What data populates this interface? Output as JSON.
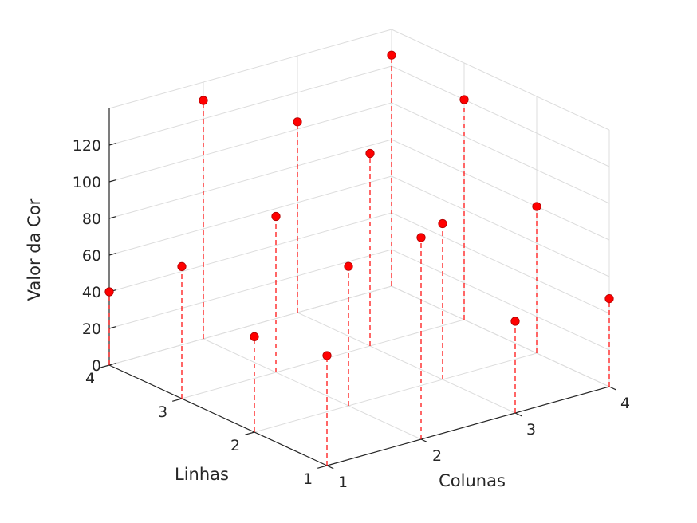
{
  "chart_data": {
    "type": "scatter",
    "subtype": "stem3",
    "title": "",
    "xlabel": "Colunas",
    "ylabel": "Linhas",
    "zlabel": "Valor da Cor",
    "xticks": [
      "1",
      "2",
      "3",
      "4"
    ],
    "yticks": [
      "1",
      "2",
      "3",
      "4"
    ],
    "zticks": [
      "0",
      "20",
      "40",
      "60",
      "80",
      "100",
      "120"
    ],
    "xlim": [
      1,
      4
    ],
    "ylim": [
      1,
      4
    ],
    "zlim": [
      0,
      140
    ],
    "grid": true,
    "marker_color": "#ff0000",
    "stem_color": "#ff0000",
    "stem_style": "dashed",
    "grid_color": "#dcdcdc",
    "axis_color": "#262626",
    "points": [
      {
        "col": 1,
        "row": 1,
        "value": 60
      },
      {
        "col": 1,
        "row": 2,
        "value": 52
      },
      {
        "col": 1,
        "row": 3,
        "value": 72
      },
      {
        "col": 1,
        "row": 4,
        "value": 40
      },
      {
        "col": 2,
        "row": 1,
        "value": 110
      },
      {
        "col": 2,
        "row": 2,
        "value": 76
      },
      {
        "col": 2,
        "row": 3,
        "value": 85
      },
      {
        "col": 2,
        "row": 4,
        "value": 130
      },
      {
        "col": 3,
        "row": 1,
        "value": 50
      },
      {
        "col": 3,
        "row": 2,
        "value": 85
      },
      {
        "col": 3,
        "row": 3,
        "value": 105
      },
      {
        "col": 3,
        "row": 4,
        "value": 104
      },
      {
        "col": 4,
        "row": 1,
        "value": 48
      },
      {
        "col": 4,
        "row": 2,
        "value": 80
      },
      {
        "col": 4,
        "row": 3,
        "value": 120
      },
      {
        "col": 4,
        "row": 4,
        "value": 126
      }
    ]
  }
}
